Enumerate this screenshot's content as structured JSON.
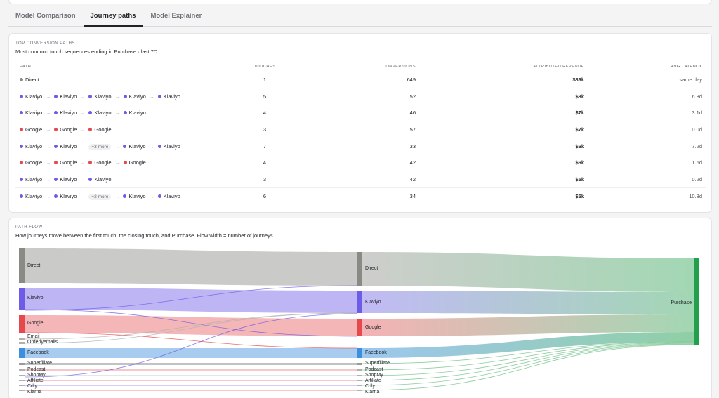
{
  "tabs": [
    {
      "label": "Model Comparison",
      "active": false
    },
    {
      "label": "Journey paths",
      "active": true
    },
    {
      "label": "Model Explainer",
      "active": false
    }
  ],
  "top_paths": {
    "eyebrow": "TOP CONVERSION PATHS",
    "subtitle": "Most common touch sequences ending in Purchase · last 7D",
    "columns": {
      "path": "PATH",
      "touches": "TOUCHES",
      "conversions": "CONVERSIONS",
      "revenue": "ATTRIBUTED REVENUE",
      "latency": "AVG LATENCY"
    },
    "rows": [
      {
        "path": [
          {
            "ch": "Direct",
            "color": "#8a8a8a"
          }
        ],
        "touches": "1",
        "conversions": "649",
        "revenue": "$89k",
        "latency": "same day"
      },
      {
        "path": [
          {
            "ch": "Klaviyo",
            "color": "#6c5ce7"
          },
          {
            "ch": "Klaviyo",
            "color": "#6c5ce7"
          },
          {
            "ch": "Klaviyo",
            "color": "#6c5ce7"
          },
          {
            "ch": "Klaviyo",
            "color": "#6c5ce7"
          },
          {
            "ch": "Klaviyo",
            "color": "#6c5ce7"
          }
        ],
        "touches": "5",
        "conversions": "52",
        "revenue": "$8k",
        "latency": "6.8d"
      },
      {
        "path": [
          {
            "ch": "Klaviyo",
            "color": "#6c5ce7"
          },
          {
            "ch": "Klaviyo",
            "color": "#6c5ce7"
          },
          {
            "ch": "Klaviyo",
            "color": "#6c5ce7"
          },
          {
            "ch": "Klaviyo",
            "color": "#6c5ce7"
          }
        ],
        "touches": "4",
        "conversions": "46",
        "revenue": "$7k",
        "latency": "3.1d"
      },
      {
        "path": [
          {
            "ch": "Google",
            "color": "#e5484d"
          },
          {
            "ch": "Google",
            "color": "#e5484d"
          },
          {
            "ch": "Google",
            "color": "#e5484d"
          }
        ],
        "touches": "3",
        "conversions": "57",
        "revenue": "$7k",
        "latency": "0.0d"
      },
      {
        "path": [
          {
            "ch": "Klaviyo",
            "color": "#6c5ce7"
          },
          {
            "ch": "Klaviyo",
            "color": "#6c5ce7"
          },
          {
            "more": "+3 more"
          },
          {
            "ch": "Klaviyo",
            "color": "#6c5ce7"
          },
          {
            "ch": "Klaviyo",
            "color": "#6c5ce7"
          }
        ],
        "touches": "7",
        "conversions": "33",
        "revenue": "$6k",
        "latency": "7.2d"
      },
      {
        "path": [
          {
            "ch": "Google",
            "color": "#e5484d"
          },
          {
            "ch": "Google",
            "color": "#e5484d"
          },
          {
            "ch": "Google",
            "color": "#e5484d"
          },
          {
            "ch": "Google",
            "color": "#e5484d"
          }
        ],
        "touches": "4",
        "conversions": "42",
        "revenue": "$6k",
        "latency": "1.6d"
      },
      {
        "path": [
          {
            "ch": "Klaviyo",
            "color": "#6c5ce7"
          },
          {
            "ch": "Klaviyo",
            "color": "#6c5ce7"
          },
          {
            "ch": "Klaviyo",
            "color": "#6c5ce7"
          }
        ],
        "touches": "3",
        "conversions": "42",
        "revenue": "$5k",
        "latency": "0.2d"
      },
      {
        "path": [
          {
            "ch": "Klaviyo",
            "color": "#6c5ce7"
          },
          {
            "ch": "Klaviyo",
            "color": "#6c5ce7"
          },
          {
            "more": "+2 more"
          },
          {
            "ch": "Klaviyo",
            "color": "#6c5ce7"
          },
          {
            "ch": "Klaviyo",
            "color": "#6c5ce7"
          }
        ],
        "touches": "6",
        "conversions": "34",
        "revenue": "$5k",
        "latency": "10.8d"
      }
    ]
  },
  "path_flow": {
    "eyebrow": "PATH FLOW",
    "subtitle": "How journeys move between the first touch, the closing touch, and Purchase. Flow width = number of journeys.",
    "first_touch": [
      {
        "name": "Direct",
        "color": "#8a8a85"
      },
      {
        "name": "Klaviyo",
        "color": "#6c5ce7"
      },
      {
        "name": "Google",
        "color": "#e5484d"
      },
      {
        "name": "Email",
        "color": "#b0b0b0"
      },
      {
        "name": "Orderlyemails",
        "color": "#b0b0b0"
      },
      {
        "name": "Facebook",
        "color": "#3b8fde"
      },
      {
        "name": "Superfiliate",
        "color": "#9a9a9a"
      },
      {
        "name": "Podcast",
        "color": "#b0b0b0"
      },
      {
        "name": "ShopMy",
        "color": "#b0b0b0"
      },
      {
        "name": "Affiliate",
        "color": "#b0b0b0"
      },
      {
        "name": "Cdly",
        "color": "#b0b0b0"
      },
      {
        "name": "Klarna",
        "color": "#b0b0b0"
      }
    ],
    "closing_touch": [
      {
        "name": "Direct",
        "color": "#8a8a85"
      },
      {
        "name": "Klaviyo",
        "color": "#6c5ce7"
      },
      {
        "name": "Google",
        "color": "#e5484d"
      },
      {
        "name": "Facebook",
        "color": "#3b8fde"
      },
      {
        "name": "Superfiliate",
        "color": "#9a9a9a"
      },
      {
        "name": "Podcast",
        "color": "#b0b0b0"
      },
      {
        "name": "ShopMy",
        "color": "#b0b0b0"
      },
      {
        "name": "Affiliate",
        "color": "#b0b0b0"
      },
      {
        "name": "Cdly",
        "color": "#b0b0b0"
      },
      {
        "name": "Klarna",
        "color": "#b0b0b0"
      }
    ],
    "outcome": {
      "name": "Purchase",
      "color": "#22a04b"
    }
  }
}
